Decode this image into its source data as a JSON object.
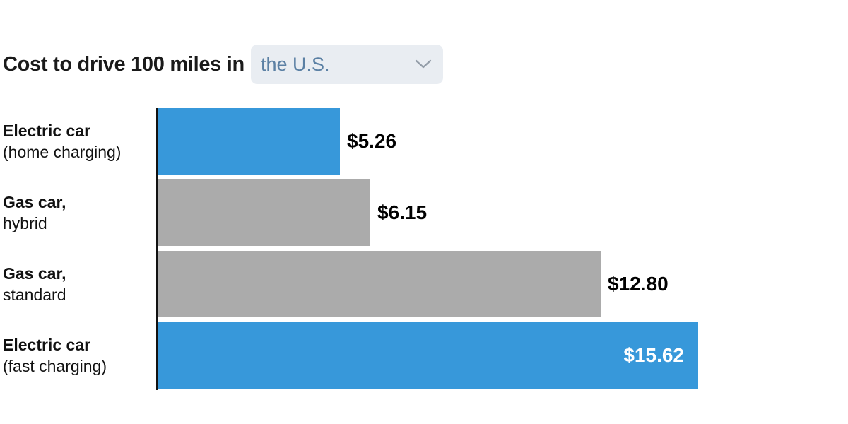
{
  "header": {
    "title": "Cost to drive 100 miles in",
    "dropdown": {
      "selected": "the U.S.",
      "icon": "chevron-down-icon"
    }
  },
  "chart_data": {
    "type": "bar",
    "orientation": "horizontal",
    "title": "Cost to drive 100 miles in the U.S.",
    "xlabel": "",
    "ylabel": "",
    "xlim": [
      0,
      15.62
    ],
    "grid": false,
    "legend": "none",
    "value_label_format": "currency",
    "categories": [
      "Electric car (home charging)",
      "Gas car, hybrid",
      "Gas car, standard",
      "Electric car (fast charging)"
    ],
    "bars": [
      {
        "label_line1": "Electric car",
        "label_line2": "(home charging)",
        "value": 5.26,
        "display_value": "$5.26",
        "color": "#3798da",
        "value_label_position": "outside"
      },
      {
        "label_line1": "Gas car,",
        "label_line2": "hybrid",
        "value": 6.15,
        "display_value": "$6.15",
        "color": "#ababab",
        "value_label_position": "outside"
      },
      {
        "label_line1": "Gas car,",
        "label_line2": "standard",
        "value": 12.8,
        "display_value": "$12.80",
        "color": "#ababab",
        "value_label_position": "outside"
      },
      {
        "label_line1": "Electric car",
        "label_line2": "(fast charging)",
        "value": 15.62,
        "display_value": "$15.62",
        "color": "#3798da",
        "value_label_position": "inside"
      }
    ],
    "colors": {
      "electric_bar": "#3798da",
      "gas_bar": "#ababab",
      "axis": "#121212",
      "value_text_outside": "#000000",
      "value_text_inside": "#ffffff"
    }
  }
}
